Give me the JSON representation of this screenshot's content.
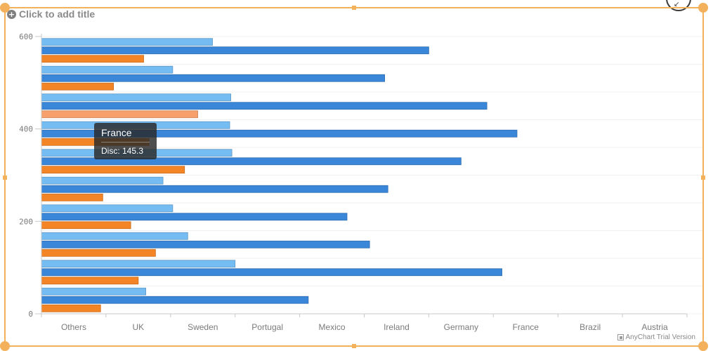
{
  "title": {
    "placeholder": "Click to add title",
    "add_icon": "+"
  },
  "colors": {
    "series_light_blue": "#75bcf2",
    "series_dark_blue": "#3a86d8",
    "series_orange": "#f48526",
    "series_orange_hover": "#f7a06c",
    "selection_border": "#f2b15a",
    "axis": "#c8c8c8",
    "tick_label": "#7a7a7a"
  },
  "tooltip": {
    "title": "France",
    "body": "Disc: 145.3"
  },
  "credits": "AnyChart Trial Version",
  "chart_data": {
    "type": "bar",
    "orientation": "horizontal",
    "x_tick_labels": [
      "Others",
      "UK",
      "Sweden",
      "Portugal",
      "Mexico",
      "Ireland",
      "Germany",
      "France",
      "Brazil",
      "Austria"
    ],
    "y_ticks": [
      0,
      200,
      400,
      600
    ],
    "ylim": [
      0,
      600
    ],
    "grid": true,
    "hover_category": "France",
    "categories": [
      "Others",
      "UK",
      "Sweden",
      "Portugal",
      "Mexico",
      "Ireland",
      "Germany",
      "France",
      "Brazil",
      "Austria"
    ],
    "series": [
      {
        "color": "#75bcf2",
        "values": [
          97,
          180,
          136,
          122,
          113,
          177,
          175,
          176,
          122,
          159
        ]
      },
      {
        "color": "#3a86d8",
        "values": [
          248,
          428,
          305,
          284,
          322,
          390,
          442,
          414,
          319,
          360
        ]
      },
      {
        "color": "#f48526",
        "values": [
          55,
          90,
          106,
          83,
          57,
          133,
          100,
          145.3,
          67,
          95
        ]
      }
    ]
  }
}
